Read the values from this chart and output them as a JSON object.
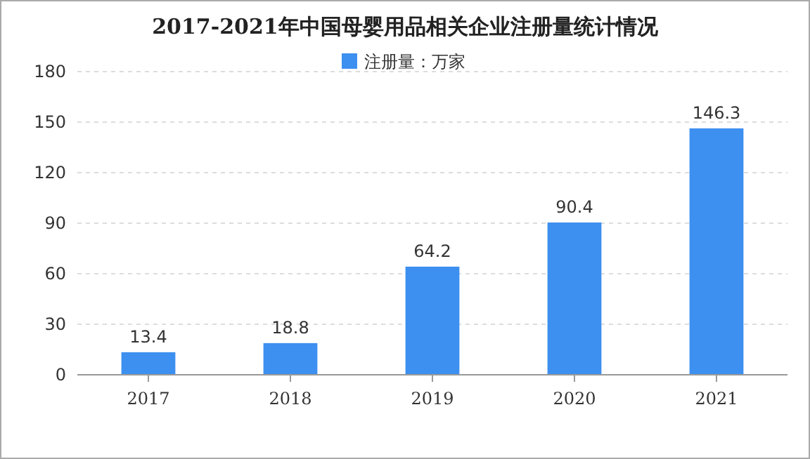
{
  "chart_data": {
    "type": "bar",
    "title": "2017-2021年中国母婴用品相关企业注册量统计情况",
    "categories": [
      "2017",
      "2018",
      "2019",
      "2020",
      "2021"
    ],
    "series": [
      {
        "name": "注册量：万家",
        "color": "#3d8ff0",
        "values": [
          13.4,
          18.8,
          64.2,
          90.4,
          146.3
        ]
      }
    ],
    "ylim": [
      0,
      180
    ],
    "yticks": [
      0,
      30,
      60,
      90,
      120,
      150,
      180
    ],
    "grid": "y",
    "legend": "top",
    "data_labels": true
  }
}
